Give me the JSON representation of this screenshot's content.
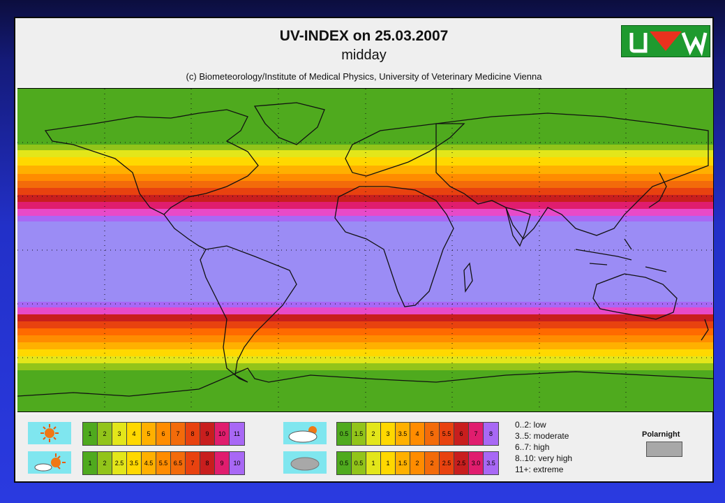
{
  "header": {
    "title": "UV-INDEX on 25.03.2007",
    "subtitle": "midday",
    "credit": "(c) Biometeorology/Institute of Medical Physics, University of Veterinary Medicine Vienna"
  },
  "map": {
    "bands_north": [
      "#4faa1e",
      "#92c41a",
      "#e3e61a",
      "#ffd800",
      "#ffb000",
      "#ff8c00",
      "#f36b0a",
      "#e8420f",
      "#c81e1e",
      "#e01d6e",
      "#e84ac8",
      "#a868f5"
    ],
    "bands_south": [
      "#a868f5",
      "#e84ac8",
      "#c81e1e",
      "#e8420f",
      "#ff6a00",
      "#ff8c00",
      "#ffb000",
      "#ffd800",
      "#e3e61a",
      "#92c41a",
      "#4faa1e"
    ],
    "tropics_color": "#9b8cf5"
  },
  "legend": {
    "clear_sky": {
      "values": [
        "1",
        "2",
        "3",
        "4",
        "5",
        "6",
        "7",
        "8",
        "9",
        "10",
        "11"
      ],
      "colors": [
        "#4faa1e",
        "#92c41a",
        "#e3e61a",
        "#ffd800",
        "#ffb000",
        "#ff8c00",
        "#f36b0a",
        "#e8420f",
        "#c81e1e",
        "#e01d6e",
        "#a868f5"
      ]
    },
    "partly_cloudy": {
      "values": [
        "1",
        "2",
        "2.5",
        "3.5",
        "4.5",
        "5.5",
        "6.5",
        "7",
        "8",
        "9",
        "10"
      ],
      "colors": [
        "#4faa1e",
        "#92c41a",
        "#e3e61a",
        "#ffd800",
        "#ffb000",
        "#ff8c00",
        "#f36b0a",
        "#e8420f",
        "#c81e1e",
        "#e01d6e",
        "#a868f5"
      ]
    },
    "scattered_cloud": {
      "values": [
        "0.5",
        "1.5",
        "2",
        "3",
        "3.5",
        "4",
        "5",
        "5.5",
        "6",
        "7",
        "8"
      ],
      "colors": [
        "#4faa1e",
        "#92c41a",
        "#e3e61a",
        "#ffd800",
        "#ffb000",
        "#ff8c00",
        "#f36b0a",
        "#e8420f",
        "#c81e1e",
        "#e01d6e",
        "#a868f5"
      ]
    },
    "overcast": {
      "values": [
        "0.5",
        "0.5",
        "1",
        "1",
        "1.5",
        "2",
        "2",
        "2.5",
        "2.5",
        "3.0",
        "3.5"
      ],
      "colors": [
        "#4faa1e",
        "#92c41a",
        "#e3e61a",
        "#ffd800",
        "#ffb000",
        "#ff8c00",
        "#f36b0a",
        "#e8420f",
        "#c81e1e",
        "#e01d6e",
        "#a868f5"
      ]
    },
    "categories": [
      "0..2: low",
      "3..5: moderate",
      "6..7: high",
      "8..10: very high",
      "11+: extreme"
    ],
    "polarnight_label": "Polarnight"
  }
}
